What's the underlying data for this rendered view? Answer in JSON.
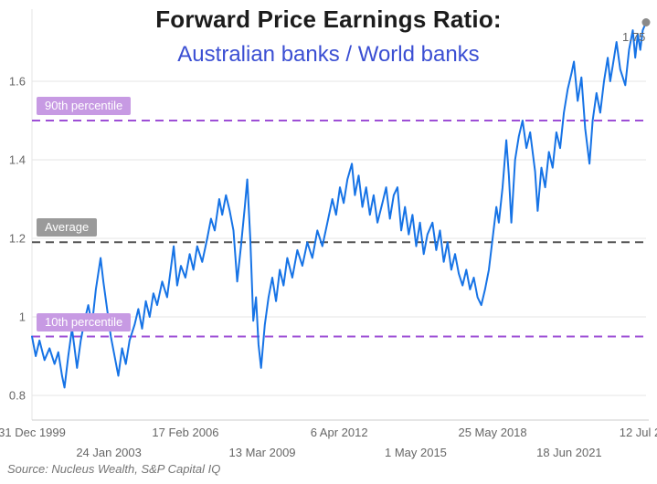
{
  "chart_data": {
    "type": "line",
    "title": "Forward Price Earnings Ratio:",
    "subtitle": "Australian banks / World banks",
    "subtitle_color": "#3b4fd3",
    "source": "Source: Nucleus Wealth, S&P Capital IQ",
    "legend": "none",
    "grid": true,
    "xlim": [
      2000.0,
      2024.53
    ],
    "ylim": [
      0.74,
      1.78
    ],
    "yticks": [
      {
        "v": 0.8,
        "label": "0.8"
      },
      {
        "v": 1.0,
        "label": "1"
      },
      {
        "v": 1.2,
        "label": "1.2"
      },
      {
        "v": 1.4,
        "label": "1.4"
      },
      {
        "v": 1.6,
        "label": "1.6"
      }
    ],
    "xticks": [
      {
        "t": 2000.0,
        "label": "31 Dec 1999",
        "row": 1
      },
      {
        "t": 2003.07,
        "label": "24 Jan 2003",
        "row": 2
      },
      {
        "t": 2006.13,
        "label": "17 Feb 2006",
        "row": 1
      },
      {
        "t": 2009.2,
        "label": "13 Mar 2009",
        "row": 2
      },
      {
        "t": 2012.27,
        "label": "6 Apr 2012",
        "row": 1
      },
      {
        "t": 2015.33,
        "label": "1 May 2015",
        "row": 2
      },
      {
        "t": 2018.4,
        "label": "25 May 2018",
        "row": 1
      },
      {
        "t": 2021.46,
        "label": "18 Jun 2021",
        "row": 2
      },
      {
        "t": 2024.53,
        "label": "12 Jul 2…",
        "row": 1
      }
    ],
    "reference_lines": [
      {
        "id": "p90",
        "label": "90th percentile",
        "value": 1.5,
        "line_color": "#9d4fd6",
        "chip_bg": "#c79ae3"
      },
      {
        "id": "avg",
        "label": "Average",
        "value": 1.19,
        "line_color": "#555555",
        "chip_bg": "#9a9a9a"
      },
      {
        "id": "p10",
        "label": "10th percentile",
        "value": 0.95,
        "line_color": "#9d4fd6",
        "chip_bg": "#c79ae3"
      }
    ],
    "last_point": {
      "t": 2024.53,
      "value": 1.75,
      "label": "1.75",
      "marker_color": "#8a8a8a"
    },
    "series": [
      {
        "name": "Australian banks / World banks forward PE ratio",
        "color": "#1673e6",
        "points": [
          [
            2000.0,
            0.95
          ],
          [
            2000.15,
            0.9
          ],
          [
            2000.3,
            0.94
          ],
          [
            2000.5,
            0.89
          ],
          [
            2000.7,
            0.92
          ],
          [
            2000.9,
            0.88
          ],
          [
            2001.05,
            0.91
          ],
          [
            2001.2,
            0.85
          ],
          [
            2001.3,
            0.82
          ],
          [
            2001.45,
            0.9
          ],
          [
            2001.6,
            0.97
          ],
          [
            2001.7,
            0.92
          ],
          [
            2001.8,
            0.87
          ],
          [
            2001.95,
            0.94
          ],
          [
            2002.1,
            0.99
          ],
          [
            2002.25,
            1.03
          ],
          [
            2002.4,
            0.98
          ],
          [
            2002.55,
            1.07
          ],
          [
            2002.74,
            1.15
          ],
          [
            2002.85,
            1.09
          ],
          [
            2003.0,
            1.02
          ],
          [
            2003.15,
            0.95
          ],
          [
            2003.3,
            0.9
          ],
          [
            2003.45,
            0.85
          ],
          [
            2003.6,
            0.92
          ],
          [
            2003.75,
            0.88
          ],
          [
            2003.9,
            0.94
          ],
          [
            2004.1,
            0.98
          ],
          [
            2004.25,
            1.02
          ],
          [
            2004.4,
            0.97
          ],
          [
            2004.55,
            1.04
          ],
          [
            2004.7,
            1.0
          ],
          [
            2004.85,
            1.06
          ],
          [
            2005.0,
            1.03
          ],
          [
            2005.2,
            1.09
          ],
          [
            2005.4,
            1.05
          ],
          [
            2005.66,
            1.18
          ],
          [
            2005.8,
            1.08
          ],
          [
            2005.95,
            1.13
          ],
          [
            2006.13,
            1.1
          ],
          [
            2006.3,
            1.16
          ],
          [
            2006.45,
            1.12
          ],
          [
            2006.6,
            1.18
          ],
          [
            2006.8,
            1.14
          ],
          [
            2007.0,
            1.2
          ],
          [
            2007.15,
            1.25
          ],
          [
            2007.3,
            1.22
          ],
          [
            2007.48,
            1.3
          ],
          [
            2007.6,
            1.26
          ],
          [
            2007.75,
            1.31
          ],
          [
            2007.9,
            1.27
          ],
          [
            2008.05,
            1.22
          ],
          [
            2008.2,
            1.09
          ],
          [
            2008.35,
            1.18
          ],
          [
            2008.5,
            1.28
          ],
          [
            2008.6,
            1.35
          ],
          [
            2008.72,
            1.2
          ],
          [
            2008.84,
            0.99
          ],
          [
            2008.95,
            1.05
          ],
          [
            2009.05,
            0.93
          ],
          [
            2009.15,
            0.87
          ],
          [
            2009.3,
            0.98
          ],
          [
            2009.45,
            1.05
          ],
          [
            2009.6,
            1.1
          ],
          [
            2009.75,
            1.04
          ],
          [
            2009.9,
            1.12
          ],
          [
            2010.05,
            1.08
          ],
          [
            2010.2,
            1.15
          ],
          [
            2010.4,
            1.1
          ],
          [
            2010.6,
            1.17
          ],
          [
            2010.8,
            1.13
          ],
          [
            2011.0,
            1.19
          ],
          [
            2011.2,
            1.15
          ],
          [
            2011.4,
            1.22
          ],
          [
            2011.6,
            1.18
          ],
          [
            2011.8,
            1.24
          ],
          [
            2012.0,
            1.3
          ],
          [
            2012.15,
            1.26
          ],
          [
            2012.3,
            1.33
          ],
          [
            2012.45,
            1.29
          ],
          [
            2012.6,
            1.35
          ],
          [
            2012.78,
            1.39
          ],
          [
            2012.9,
            1.31
          ],
          [
            2013.05,
            1.36
          ],
          [
            2013.2,
            1.28
          ],
          [
            2013.35,
            1.33
          ],
          [
            2013.5,
            1.26
          ],
          [
            2013.65,
            1.31
          ],
          [
            2013.8,
            1.24
          ],
          [
            2014.0,
            1.29
          ],
          [
            2014.15,
            1.33
          ],
          [
            2014.3,
            1.25
          ],
          [
            2014.45,
            1.31
          ],
          [
            2014.6,
            1.33
          ],
          [
            2014.75,
            1.22
          ],
          [
            2014.9,
            1.28
          ],
          [
            2015.05,
            1.21
          ],
          [
            2015.2,
            1.26
          ],
          [
            2015.35,
            1.18
          ],
          [
            2015.5,
            1.24
          ],
          [
            2015.65,
            1.16
          ],
          [
            2015.8,
            1.21
          ],
          [
            2016.0,
            1.24
          ],
          [
            2016.15,
            1.17
          ],
          [
            2016.3,
            1.22
          ],
          [
            2016.45,
            1.14
          ],
          [
            2016.6,
            1.19
          ],
          [
            2016.75,
            1.12
          ],
          [
            2016.9,
            1.16
          ],
          [
            2017.05,
            1.11
          ],
          [
            2017.2,
            1.08
          ],
          [
            2017.35,
            1.12
          ],
          [
            2017.5,
            1.07
          ],
          [
            2017.65,
            1.1
          ],
          [
            2017.8,
            1.05
          ],
          [
            2017.95,
            1.03
          ],
          [
            2018.1,
            1.07
          ],
          [
            2018.25,
            1.12
          ],
          [
            2018.4,
            1.2
          ],
          [
            2018.55,
            1.28
          ],
          [
            2018.65,
            1.24
          ],
          [
            2018.8,
            1.33
          ],
          [
            2018.95,
            1.45
          ],
          [
            2019.05,
            1.36
          ],
          [
            2019.15,
            1.24
          ],
          [
            2019.3,
            1.4
          ],
          [
            2019.45,
            1.46
          ],
          [
            2019.6,
            1.5
          ],
          [
            2019.75,
            1.43
          ],
          [
            2019.9,
            1.47
          ],
          [
            2020.1,
            1.37
          ],
          [
            2020.2,
            1.27
          ],
          [
            2020.35,
            1.38
          ],
          [
            2020.5,
            1.33
          ],
          [
            2020.65,
            1.42
          ],
          [
            2020.8,
            1.38
          ],
          [
            2020.95,
            1.47
          ],
          [
            2021.1,
            1.43
          ],
          [
            2021.25,
            1.52
          ],
          [
            2021.4,
            1.58
          ],
          [
            2021.55,
            1.62
          ],
          [
            2021.65,
            1.65
          ],
          [
            2021.8,
            1.55
          ],
          [
            2021.95,
            1.61
          ],
          [
            2022.1,
            1.48
          ],
          [
            2022.27,
            1.39
          ],
          [
            2022.4,
            1.5
          ],
          [
            2022.55,
            1.57
          ],
          [
            2022.7,
            1.52
          ],
          [
            2022.85,
            1.6
          ],
          [
            2023.0,
            1.66
          ],
          [
            2023.1,
            1.6
          ],
          [
            2023.2,
            1.64
          ],
          [
            2023.35,
            1.7
          ],
          [
            2023.5,
            1.63
          ],
          [
            2023.7,
            1.59
          ],
          [
            2023.85,
            1.68
          ],
          [
            2024.0,
            1.73
          ],
          [
            2024.1,
            1.66
          ],
          [
            2024.2,
            1.72
          ],
          [
            2024.3,
            1.68
          ],
          [
            2024.4,
            1.73
          ],
          [
            2024.53,
            1.75
          ]
        ]
      }
    ]
  }
}
